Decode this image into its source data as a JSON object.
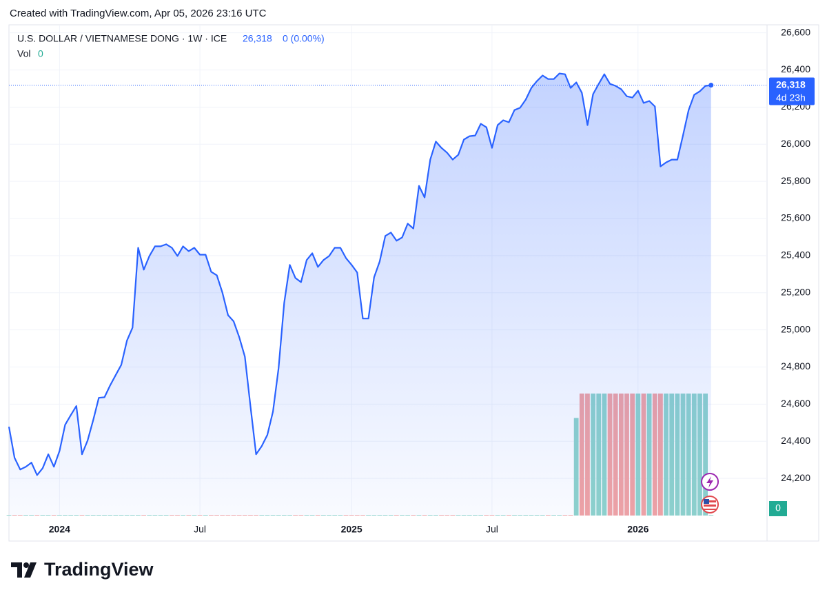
{
  "header": {
    "created": "Created with TradingView.com, Apr 05, 2026 23:16 UTC",
    "logo": "TradingView"
  },
  "chart_data": {
    "type": "line",
    "title": "U.S. DOLLAR / VIETNAMESE DONG · 1W · ICE",
    "last_price": {
      "value": 26318,
      "label": "26,318"
    },
    "change": "0 (0.00%)",
    "countdown": "4d 23h",
    "categories": [
      null,
      null,
      null,
      null,
      null,
      null,
      null,
      null,
      null,
      "2024",
      null,
      null,
      null,
      null,
      null,
      null,
      null,
      null,
      null,
      null,
      null,
      null,
      null,
      null,
      null,
      null,
      null,
      null,
      null,
      null,
      null,
      null,
      null,
      null,
      "Jul",
      null,
      null,
      null,
      null,
      null,
      null,
      null,
      null,
      null,
      null,
      null,
      null,
      null,
      null,
      null,
      null,
      null,
      null,
      null,
      null,
      null,
      null,
      null,
      null,
      null,
      null,
      "2025",
      null,
      null,
      null,
      null,
      null,
      null,
      null,
      null,
      null,
      null,
      null,
      null,
      null,
      null,
      null,
      null,
      null,
      null,
      null,
      null,
      null,
      null,
      null,
      null,
      "Jul",
      null,
      null,
      null,
      null,
      null,
      null,
      null,
      null,
      null,
      null,
      null,
      null,
      null,
      null,
      null,
      null,
      null,
      null,
      null,
      null,
      null,
      null,
      null,
      null,
      null,
      "2026",
      null,
      null,
      null,
      null,
      null,
      null,
      null,
      null,
      null,
      null,
      null,
      null,
      null
    ],
    "series": [
      {
        "color": "#2962ff",
        "values": [
          24478,
          24311,
          24248,
          24263,
          24285,
          24218,
          24255,
          24330,
          24263,
          24348,
          24489,
          24541,
          24590,
          24330,
          24404,
          24515,
          24634,
          24637,
          24700,
          24756,
          24812,
          24942,
          25012,
          25442,
          25324,
          25398,
          25450,
          25450,
          25461,
          25442,
          25398,
          25450,
          25424,
          25442,
          25405,
          25405,
          25313,
          25294,
          25201,
          25079,
          25046,
          24960,
          24856,
          24590,
          24330,
          24374,
          24434,
          24560,
          24793,
          25146,
          25350,
          25279,
          25257,
          25376,
          25413,
          25339,
          25376,
          25398,
          25442,
          25442,
          25387,
          25350,
          25309,
          25061,
          25061,
          25283,
          25368,
          25506,
          25524,
          25480,
          25498,
          25572,
          25546,
          25776,
          25713,
          25917,
          26014,
          25980,
          25954,
          25917,
          25943,
          26025,
          26043,
          26047,
          26110,
          26091,
          25980,
          26103,
          26129,
          26118,
          26184,
          26196,
          26240,
          26303,
          26340,
          26370,
          26351,
          26351,
          26381,
          26377,
          26303,
          26333,
          26277,
          26103,
          26270,
          26325,
          26377,
          26325,
          26314,
          26296,
          26258,
          26251,
          26288,
          26222,
          26233,
          26203,
          25880,
          25902,
          25917,
          25917,
          26047,
          26184,
          26266,
          26285,
          26314,
          26318
        ]
      }
    ],
    "ylim": [
      24000,
      26643
    ],
    "yticks": [
      {
        "value": 24200,
        "label": "24,200"
      },
      {
        "value": 24400,
        "label": "24,400"
      },
      {
        "value": 24600,
        "label": "24,600"
      },
      {
        "value": 24800,
        "label": "24,800"
      },
      {
        "value": 25000,
        "label": "25,000"
      },
      {
        "value": 25200,
        "label": "25,200"
      },
      {
        "value": 25400,
        "label": "25,400"
      },
      {
        "value": 25600,
        "label": "25,600"
      },
      {
        "value": 25800,
        "label": "25,800"
      },
      {
        "value": 26000,
        "label": "26,000"
      },
      {
        "value": 26200,
        "label": "26,200"
      },
      {
        "value": 26400,
        "label": "26,400"
      },
      {
        "value": 26600,
        "label": "26,600"
      }
    ],
    "grid": true,
    "volume": {
      "label": "Vol",
      "last_value": 0,
      "up_color": "#8fd3cb",
      "down_color": "#f2a3a3",
      "values": [
        0,
        0,
        0,
        0,
        0,
        0,
        0,
        0,
        0,
        0,
        0,
        0,
        0,
        0,
        0,
        0,
        0,
        0,
        0,
        0,
        0,
        0,
        0,
        0,
        0,
        0,
        0,
        0,
        0,
        0,
        0,
        0,
        0,
        0,
        0,
        0,
        0,
        0,
        0,
        0,
        0,
        0,
        0,
        0,
        0,
        0,
        0,
        0,
        0,
        0,
        0,
        0,
        0,
        0,
        0,
        0,
        0,
        0,
        0,
        0,
        0,
        0,
        0,
        0,
        0,
        0,
        0,
        0,
        0,
        0,
        0,
        0,
        0,
        0,
        0,
        0,
        0,
        0,
        0,
        0,
        0,
        0,
        0,
        0,
        0,
        0,
        0,
        0,
        0,
        0,
        0,
        0,
        0,
        0,
        0,
        0,
        0,
        0,
        0,
        0,
        0,
        0.8,
        1,
        1,
        1,
        1,
        1,
        1,
        1,
        1,
        1,
        1,
        1,
        1,
        1,
        1,
        1,
        1,
        1,
        1,
        1,
        1,
        1,
        1,
        1,
        0
      ]
    }
  }
}
